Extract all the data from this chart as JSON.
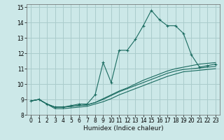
{
  "xlabel": "Humidex (Indice chaleur)",
  "xlim": [
    -0.5,
    23.5
  ],
  "ylim": [
    8.0,
    15.2
  ],
  "yticks": [
    8,
    9,
    10,
    11,
    12,
    13,
    14,
    15
  ],
  "xticks": [
    0,
    1,
    2,
    3,
    4,
    5,
    6,
    7,
    8,
    9,
    10,
    11,
    12,
    13,
    14,
    15,
    16,
    17,
    18,
    19,
    20,
    21,
    22,
    23
  ],
  "bg_color": "#cce8e8",
  "grid_color": "#aacccc",
  "line_color": "#1a6b60",
  "series1_y": [
    8.9,
    9.0,
    8.7,
    8.5,
    8.5,
    8.6,
    8.7,
    8.7,
    9.3,
    11.4,
    10.1,
    12.2,
    12.2,
    12.9,
    13.8,
    14.8,
    14.2,
    13.8,
    13.8,
    13.3,
    11.9,
    11.1,
    11.2,
    11.3
  ],
  "series2_y": [
    8.9,
    9.0,
    8.7,
    8.5,
    8.5,
    8.55,
    8.6,
    8.65,
    8.8,
    9.05,
    9.3,
    9.55,
    9.75,
    10.0,
    10.25,
    10.45,
    10.65,
    10.85,
    11.0,
    11.1,
    11.2,
    11.3,
    11.35,
    11.4
  ],
  "series3_y": [
    8.9,
    9.0,
    8.7,
    8.5,
    8.5,
    8.55,
    8.6,
    8.65,
    8.8,
    9.0,
    9.25,
    9.5,
    9.7,
    9.9,
    10.1,
    10.3,
    10.5,
    10.7,
    10.85,
    10.95,
    11.0,
    11.05,
    11.1,
    11.15
  ],
  "series4_y": [
    8.9,
    9.0,
    8.7,
    8.4,
    8.4,
    8.45,
    8.5,
    8.55,
    8.7,
    8.85,
    9.05,
    9.3,
    9.5,
    9.7,
    9.9,
    10.1,
    10.3,
    10.5,
    10.65,
    10.8,
    10.85,
    10.9,
    10.95,
    11.0
  ]
}
